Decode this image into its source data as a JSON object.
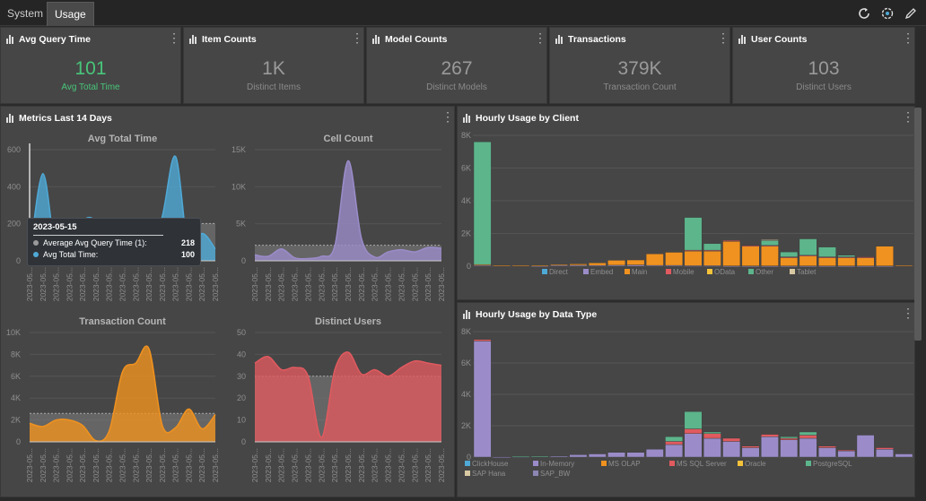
{
  "tabs": [
    {
      "label": "System"
    },
    {
      "label": "Usage"
    }
  ],
  "kpis": [
    {
      "title": "Avg Query Time",
      "value": "101",
      "sub": "Avg Total Time"
    },
    {
      "title": "Item Counts",
      "value": "1K",
      "sub": "Distinct Items"
    },
    {
      "title": "Model Counts",
      "value": "267",
      "sub": "Distinct Models"
    },
    {
      "title": "Transactions",
      "value": "379K",
      "sub": "Transaction Count"
    },
    {
      "title": "User Counts",
      "value": "103",
      "sub": "Distinct Users"
    }
  ],
  "colors": {
    "accent_green": "#48c57a",
    "blue": "#4fa9d6",
    "purple": "#9b8cc9",
    "orange": "#f0921f",
    "red": "#e05a5f",
    "teal": "#5db58c"
  },
  "metrics_panel": {
    "title": "Metrics Last 14 Days"
  },
  "tooltip": {
    "date": "2023-05-15",
    "rows": [
      {
        "label": "Average Avg Query Time (1):",
        "value": "218"
      },
      {
        "label": "Avg Total Time:",
        "value": "100"
      }
    ]
  },
  "chart_data": [
    {
      "type": "area",
      "title": "Avg Total Time",
      "ylim": [
        0,
        650
      ],
      "yticks": [
        "0",
        "200",
        "400",
        "600"
      ],
      "x_tick_label": "2023-05...",
      "values": [
        20,
        510,
        40,
        40,
        230,
        230,
        40,
        40,
        110,
        60,
        260,
        610,
        50,
        160,
        70
      ],
      "reference": 218
    },
    {
      "type": "area",
      "title": "Cell Count",
      "ylim": [
        0,
        15000
      ],
      "yticks": [
        "0",
        "5K",
        "10K",
        "15K"
      ],
      "x_tick_label": "2023-05...",
      "values": [
        800,
        600,
        1600,
        400,
        300,
        600,
        2000,
        13500,
        3000,
        500,
        1200,
        1500,
        1200,
        1800,
        1700
      ],
      "reference": 2100
    },
    {
      "type": "area",
      "title": "Transaction Count",
      "ylim": [
        0,
        10000
      ],
      "yticks": [
        "0",
        "2K",
        "4K",
        "6K",
        "8K",
        "10K"
      ],
      "x_tick_label": "2023-05...",
      "values": [
        1700,
        1400,
        2000,
        2000,
        1500,
        100,
        1000,
        6400,
        7200,
        8500,
        1500,
        1300,
        3000,
        1200,
        2500
      ],
      "reference": 2600
    },
    {
      "type": "area",
      "title": "Distinct Users",
      "ylim": [
        0,
        50
      ],
      "yticks": [
        "0",
        "10",
        "20",
        "30",
        "40",
        "50"
      ],
      "x_tick_label": "2023-05...",
      "values": [
        36,
        39,
        33,
        34,
        30,
        2,
        33,
        41,
        31,
        33,
        30,
        34,
        37,
        36,
        35
      ],
      "reference": 30
    },
    {
      "type": "bar",
      "stacked": true,
      "title": "Hourly Usage by Client",
      "ylim": [
        0,
        8000
      ],
      "yticks": [
        "0",
        "2K",
        "4K",
        "6K",
        "8K"
      ],
      "legend": [
        "Direct",
        "Embed",
        "Main",
        "Mobile",
        "OData",
        "Other",
        "Tablet"
      ],
      "legend_colors": [
        "#4fa9d6",
        "#9b8cc9",
        "#f0921f",
        "#e05a5f",
        "#f5c33b",
        "#5db58c",
        "#d9c9a3"
      ],
      "series": [
        {
          "name": "Direct",
          "values": [
            0,
            0,
            0,
            0,
            0,
            0,
            0,
            0,
            0,
            0,
            0,
            0,
            0,
            0,
            0,
            0,
            0,
            0,
            0,
            0,
            0,
            0,
            0
          ]
        },
        {
          "name": "Embed",
          "values": [
            50,
            30,
            20,
            20,
            40,
            60,
            50,
            60,
            80,
            50,
            50,
            30,
            30,
            20,
            20,
            20,
            20,
            20,
            20,
            20,
            20,
            20,
            20
          ]
        },
        {
          "name": "Main",
          "values": [
            50,
            20,
            20,
            40,
            60,
            80,
            150,
            300,
            300,
            700,
            800,
            900,
            900,
            1500,
            1200,
            1200,
            500,
            600,
            500,
            500,
            500,
            1200,
            20
          ]
        },
        {
          "name": "Mobile",
          "values": [
            0,
            0,
            0,
            0,
            0,
            0,
            0,
            0,
            0,
            0,
            0,
            50,
            50,
            50,
            50,
            50,
            50,
            50,
            50,
            50,
            50,
            0,
            0
          ]
        },
        {
          "name": "OData",
          "values": [
            0,
            0,
            0,
            0,
            0,
            0,
            0,
            0,
            0,
            0,
            0,
            0,
            0,
            0,
            0,
            0,
            0,
            0,
            0,
            0,
            0,
            0,
            0
          ]
        },
        {
          "name": "Other",
          "values": [
            7500,
            0,
            0,
            0,
            0,
            0,
            0,
            0,
            0,
            0,
            0,
            2000,
            400,
            0,
            0,
            300,
            300,
            1000,
            600,
            100,
            0,
            0,
            0
          ]
        },
        {
          "name": "Tablet",
          "values": [
            0,
            0,
            0,
            0,
            0,
            0,
            0,
            0,
            0,
            0,
            0,
            0,
            0,
            0,
            0,
            50,
            0,
            0,
            0,
            0,
            0,
            0,
            0
          ]
        }
      ]
    },
    {
      "type": "bar",
      "stacked": true,
      "title": "Hourly Usage by Data Type",
      "ylim": [
        0,
        8000
      ],
      "yticks": [
        "0",
        "2K",
        "4K",
        "6K",
        "8K"
      ],
      "legend": [
        "ClickHouse",
        "In-Memory",
        "MS OLAP",
        "MS SQL Server",
        "Oracle",
        "PostgreSQL",
        "SAP Hana",
        "SAP_BW"
      ],
      "legend_colors": [
        "#4fa9d6",
        "#9b8cc9",
        "#f0921f",
        "#e05a5f",
        "#f5c33b",
        "#5db58c",
        "#d9c9a3",
        "#8c86b3"
      ],
      "series": [
        {
          "name": "In-Memory",
          "values": [
            7400,
            20,
            20,
            40,
            60,
            150,
            200,
            300,
            300,
            500,
            800,
            1500,
            1200,
            1000,
            600,
            1300,
            1100,
            1200,
            600,
            400,
            1400,
            500,
            200
          ]
        },
        {
          "name": "MS SQL Server",
          "values": [
            100,
            0,
            0,
            0,
            0,
            0,
            0,
            0,
            0,
            0,
            200,
            300,
            300,
            200,
            100,
            150,
            100,
            200,
            100,
            50,
            0,
            100,
            0
          ]
        },
        {
          "name": "PostgreSQL",
          "values": [
            0,
            0,
            30,
            20,
            0,
            0,
            0,
            0,
            0,
            0,
            300,
            1100,
            100,
            0,
            0,
            0,
            100,
            200,
            0,
            0,
            0,
            0,
            0
          ]
        }
      ]
    }
  ]
}
